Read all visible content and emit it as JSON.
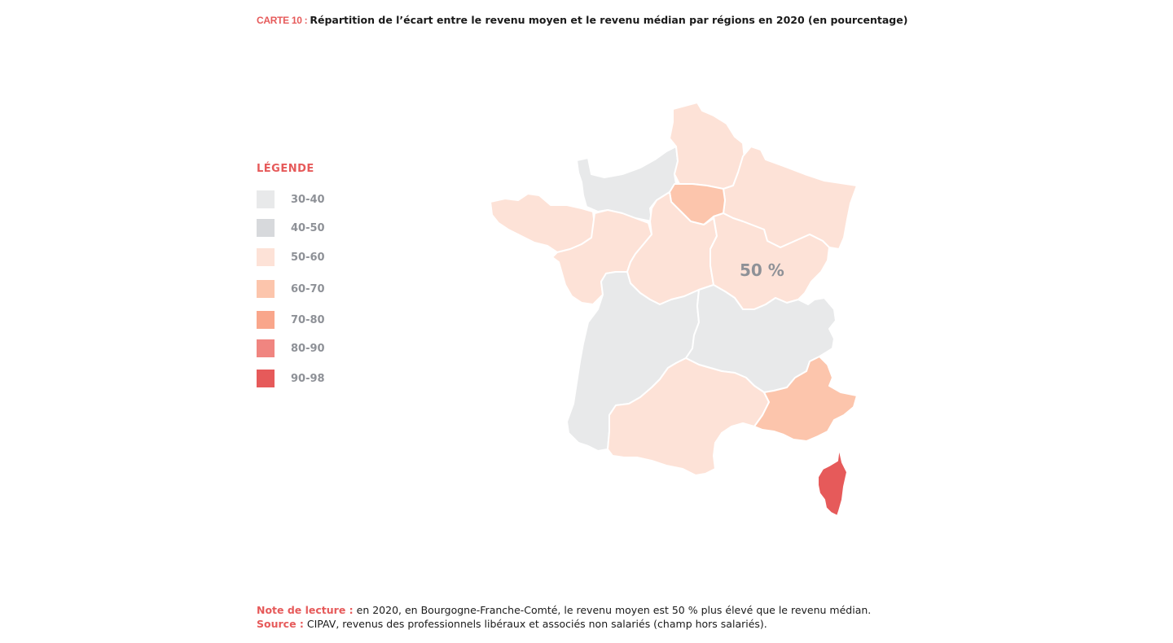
{
  "title": {
    "label": "CARTE 10 :",
    "text": "Répartition de l’écart entre le revenu moyen et le revenu médian par régions en 2020 (en pourcentage)"
  },
  "legend": {
    "title": "LÉGENDE",
    "items": [
      {
        "label": "30-40",
        "color": "#e8e9ea"
      },
      {
        "label": "40-50",
        "color": "#d7d9dc"
      },
      {
        "label": "50-60",
        "color": "#fde2d7"
      },
      {
        "label": "60-70",
        "color": "#fcc5ac"
      },
      {
        "label": "70-80",
        "color": "#f9a68b"
      },
      {
        "label": "80-90",
        "color": "#f08580"
      },
      {
        "label": "90-98",
        "color": "#e65a5a"
      }
    ]
  },
  "map": {
    "annotation": "50 %",
    "regions": [
      {
        "id": "normandie",
        "class": "30-40",
        "color": "#e8e9ea"
      },
      {
        "id": "hauts-de-france",
        "class": "50-60",
        "color": "#fde2d7"
      },
      {
        "id": "grand-est",
        "class": "50-60",
        "color": "#fde2d7"
      },
      {
        "id": "ile-de-france",
        "class": "60-70",
        "color": "#fcc5ac"
      },
      {
        "id": "bretagne",
        "class": "50-60",
        "color": "#fde2d7"
      },
      {
        "id": "pays-de-la-loire",
        "class": "50-60",
        "color": "#fde2d7"
      },
      {
        "id": "centre-val-de-loire",
        "class": "50-60",
        "color": "#fde2d7"
      },
      {
        "id": "bourgogne-franche-comte",
        "class": "50-60",
        "color": "#fde2d7"
      },
      {
        "id": "nouvelle-aquitaine",
        "class": "30-40",
        "color": "#e8e9ea"
      },
      {
        "id": "auvergne-rhone-alpes",
        "class": "30-40",
        "color": "#e8e9ea"
      },
      {
        "id": "occitanie",
        "class": "50-60",
        "color": "#fde2d7"
      },
      {
        "id": "provence-alpes-cote-d-azur",
        "class": "60-70",
        "color": "#fcc5ac"
      },
      {
        "id": "corse",
        "class": "90-98",
        "color": "#e65a5a"
      }
    ]
  },
  "note": {
    "label": "Note de lecture :",
    "text": " en 2020, en Bourgogne-Franche-Comté, le revenu moyen est 50 % plus élevé que le revenu médian."
  },
  "source": {
    "label": "Source :",
    "text": " CIPAV, revenus des professionnels libéraux et associés non salariés (champ hors salariés)."
  }
}
